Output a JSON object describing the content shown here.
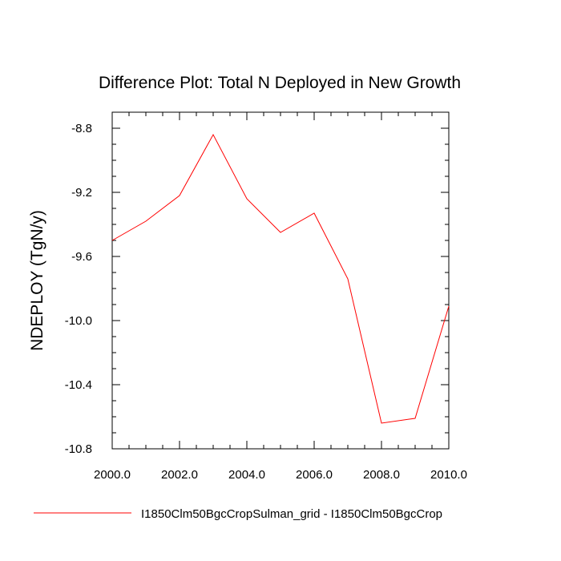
{
  "chart_data": {
    "type": "line",
    "title": "Difference Plot: Total N Deployed in New Growth",
    "xlabel": "",
    "ylabel": "NDEPLOY  (TgN/y)",
    "xlim": [
      2000,
      2010
    ],
    "ylim": [
      -10.8,
      -8.7
    ],
    "x_ticks": [
      2000,
      2002,
      2004,
      2006,
      2008,
      2010
    ],
    "x_tick_labels": [
      "2000.0",
      "2002.0",
      "2004.0",
      "2006.0",
      "2008.0",
      "2010.0"
    ],
    "y_ticks": [
      -8.8,
      -9.2,
      -9.6,
      -10.0,
      -10.4,
      -10.8
    ],
    "y_tick_labels": [
      "-8.8",
      "-9.2",
      "-9.6",
      "-10.0",
      "-10.4",
      "-10.8"
    ],
    "grid": false,
    "legend_position": "bottom",
    "series": [
      {
        "name": "I1850Clm50BgcCropSulman_grid - I1850Clm50BgcCrop",
        "color": "#ff0000",
        "x": [
          2000,
          2001,
          2002,
          2003,
          2004,
          2005,
          2006,
          2007,
          2008,
          2009,
          2010
        ],
        "y": [
          -9.5,
          -9.38,
          -9.22,
          -8.84,
          -9.24,
          -9.45,
          -9.33,
          -9.74,
          -10.64,
          -10.61,
          -9.91
        ]
      }
    ]
  }
}
